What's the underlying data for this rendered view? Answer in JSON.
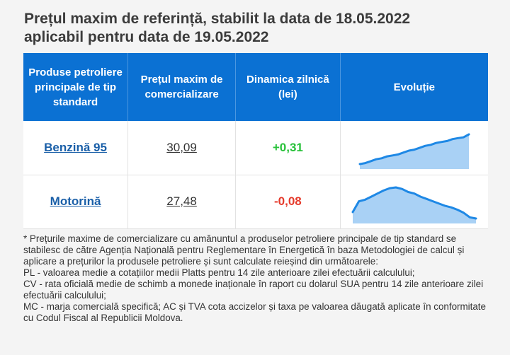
{
  "title": {
    "line1": "Prețul maxim de referință, stabilit la data de 18.05.2022",
    "line2": "aplicabil pentru data de 19.05.2022"
  },
  "table": {
    "headers": {
      "product": "Produse petroliere principale de tip standard",
      "price": "Prețul maxim de comercializare",
      "change": "Dinamica zilnică (lei)",
      "trend": "Evoluție"
    },
    "rows": [
      {
        "product": "Benzină 95",
        "price": "30,09",
        "change": "+0,31",
        "direction": "up",
        "trend": [
          27.0,
          27.1,
          27.3,
          27.5,
          27.6,
          27.8,
          27.9,
          28.0,
          28.2,
          28.4,
          28.5,
          28.7,
          28.9,
          29.0,
          29.2,
          29.3,
          29.4,
          29.6,
          29.7,
          29.78,
          30.09
        ]
      },
      {
        "product": "Motorină",
        "price": "27,48",
        "change": "-0,08",
        "direction": "down",
        "trend": [
          27.9,
          28.6,
          28.7,
          28.9,
          29.1,
          29.3,
          29.45,
          29.5,
          29.4,
          29.2,
          29.1,
          28.9,
          28.75,
          28.6,
          28.45,
          28.3,
          28.2,
          28.05,
          27.85,
          27.56,
          27.48
        ]
      }
    ]
  },
  "colors": {
    "header_bg": "#0b71d3",
    "positive": "#27c139",
    "negative": "#e53a2b",
    "link": "#1a5fa8",
    "sparkline": "#1e88e5",
    "sparkline_fill": "#a9d1f5"
  },
  "notes": [
    "* Prețurile maxime de comercializare cu amănuntul a produselor petroliere principale de tip standard se stabilesc de către Agenția Națională pentru Reglementare în Energetică în baza Metodologiei de calcul și aplicare a prețurilor la produsele petroliere și sunt calculate reieșind din următoarele:",
    "PL - valoarea medie a cotațiilor medii Platts pentru 14 zile anterioare zilei efectuării calculului;",
    "CV - rata oficială medie de schimb a monede inaționale în raport cu dolarul SUA pentru 14 zile anterioare zilei efectuării calculului;",
    "MC - marja comercială specifică; AC și TVA cota accizelor și taxa pe valoarea dăugată aplicate în conformitate cu Codul Fiscal al Republicii Moldova."
  ]
}
